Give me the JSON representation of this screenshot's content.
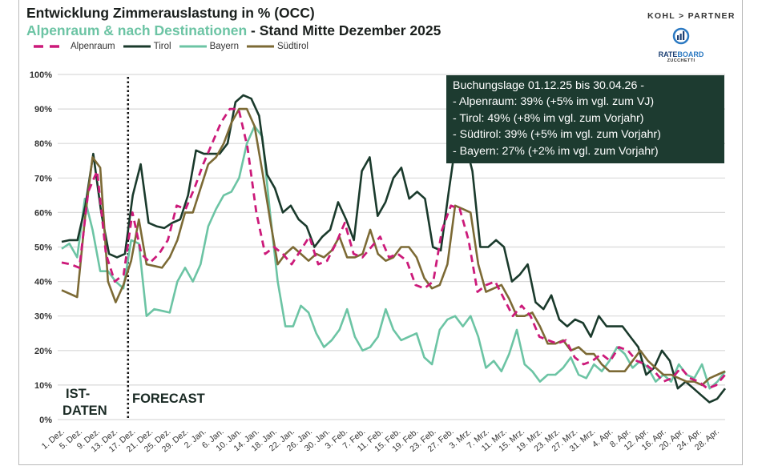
{
  "header": {
    "title": "Entwicklung Zimmerauslastung in % (OCC)",
    "subtitle_green": "Alpenraum & nach Destinationen",
    "subtitle_dark": " - Stand Mitte Dezember 2025"
  },
  "branding": {
    "partner": "KOHL > PARTNER",
    "rateboard_rate": "RATE",
    "rateboard_board": "BOARD",
    "rateboard_sub": "ZUCCHETTI"
  },
  "infobox": {
    "lines": [
      "Buchungslage 01.12.25 bis 30.04.26 -",
      "- Alpenraum:  39% (+5% im vgl. zum VJ)",
      "- Tirol: 49% (+8% im vgl. zum Vorjahr)",
      "- Südtirol: 39% (+5% im vgl. zum Vorjahr)",
      "- Bayern: 27% (+2% im vgl. zum Vorjahr)"
    ]
  },
  "annotations": {
    "ist_line1": "IST-",
    "ist_line2": "DATEN",
    "forecast": "FORECAST"
  },
  "colors": {
    "alpenraum": "#cc1a7a",
    "tirol": "#1a3a2c",
    "bayern": "#6cc4a4",
    "suedtirol": "#7c6a35",
    "grid": "#d9d9d9",
    "infobox_bg": "#1d3b30"
  },
  "chart_data": {
    "type": "line",
    "title": "Entwicklung Zimmerauslastung in % (OCC)",
    "subtitle": "Alpenraum & nach Destinationen - Stand Mitte Dezember 2025",
    "xlabel": "",
    "ylabel": "",
    "ylim": [
      0,
      100
    ],
    "y_ticks": [
      "0%",
      "10%",
      "20%",
      "30%",
      "40%",
      "50%",
      "60%",
      "70%",
      "80%",
      "90%",
      "100%"
    ],
    "grid": true,
    "legend_position": "top-left",
    "x_step_days": 2,
    "x_start": "1. Dez.",
    "x_tick_labels": [
      "1. Dez.",
      "5. Dez.",
      "9. Dez.",
      "13. Dez.",
      "17. Dez.",
      "21. Dez.",
      "25. Dez.",
      "29. Dez.",
      "2. Jan.",
      "6. Jan.",
      "10. Jan.",
      "14. Jan.",
      "18. Jan.",
      "22. Jan.",
      "26. Jan.",
      "30. Jan.",
      "3. Feb.",
      "7. Feb.",
      "11. Feb.",
      "15. Feb.",
      "19. Feb.",
      "23. Feb.",
      "27. Feb.",
      "3. Mrz.",
      "7. Mrz.",
      "11. Mrz.",
      "15. Mrz.",
      "19. Mrz.",
      "23. Mrz.",
      "27. Mrz.",
      "31. Mrz.",
      "4. Apr.",
      "8. Apr.",
      "12. Apr.",
      "16. Apr.",
      "20. Apr.",
      "24. Apr.",
      "28. Apr."
    ],
    "split_marker": {
      "after_tick": "13. Dez.",
      "day_index": 15,
      "left_label": "IST-DATEN",
      "right_label": "FORECAST"
    },
    "series": [
      {
        "name": "Alpenraum",
        "style": "dashed",
        "values": [
          45.5,
          45,
          44,
          66,
          72,
          48,
          40,
          42,
          60,
          48,
          45.5,
          48,
          52,
          62,
          61,
          67,
          74,
          80,
          86,
          90,
          90,
          79,
          60,
          48,
          50,
          48,
          45,
          49,
          53,
          45,
          46,
          51,
          57,
          48,
          47,
          50,
          53,
          47,
          48,
          46,
          39,
          38,
          40,
          55,
          62,
          61,
          52,
          37,
          39,
          40,
          35,
          30,
          33,
          30,
          24,
          23,
          22,
          23,
          18,
          16,
          17,
          19,
          17,
          21,
          20,
          17,
          16,
          14,
          11,
          12,
          15,
          12,
          11,
          9,
          10,
          13
        ]
      },
      {
        "name": "Tirol",
        "style": "solid",
        "values": [
          51.5,
          52,
          52,
          62,
          77,
          60,
          48,
          47,
          48,
          65,
          74,
          57,
          56,
          55.5,
          57,
          58,
          65,
          78,
          77,
          77,
          77,
          80,
          92,
          94,
          93,
          88,
          71,
          67,
          60,
          62,
          58,
          56,
          50,
          53,
          55,
          63,
          58,
          52,
          72,
          76,
          59,
          63,
          70,
          73,
          64,
          66,
          64,
          50,
          49,
          66,
          82,
          81,
          72,
          50,
          50,
          52,
          50,
          40,
          42,
          45,
          34,
          32,
          36,
          29,
          27,
          29,
          28,
          24,
          30,
          27,
          27,
          27,
          24,
          21,
          13,
          15,
          20,
          17,
          9,
          11,
          9,
          7,
          5,
          6,
          9
        ]
      },
      {
        "name": "Bayern",
        "style": "solid",
        "values": [
          49.5,
          51,
          47,
          64,
          55,
          43,
          43,
          40,
          38,
          52,
          51,
          30,
          32,
          31.5,
          31,
          40,
          44,
          40,
          45,
          56,
          61,
          65,
          66,
          70,
          80,
          85,
          82,
          60,
          40,
          27,
          27,
          33,
          31,
          25,
          21,
          23,
          26,
          32,
          24,
          20,
          21,
          24,
          32,
          26,
          23,
          24,
          25,
          18,
          16,
          26,
          29,
          30,
          27,
          30,
          24,
          15,
          17,
          14,
          19,
          26,
          16,
          14,
          11,
          13,
          13,
          15,
          18,
          13,
          12,
          16,
          14,
          17,
          21,
          19,
          15,
          17,
          15,
          11,
          13,
          11,
          16,
          13,
          12,
          16,
          9,
          11,
          14
        ]
      },
      {
        "name": "Südtirol",
        "style": "solid",
        "values": [
          37.5,
          36.5,
          35.5,
          58,
          76,
          73,
          40,
          34,
          39,
          46,
          58,
          45,
          44.5,
          44,
          47,
          52,
          60,
          60,
          67,
          74,
          76,
          80,
          86,
          90,
          90,
          85,
          72,
          58,
          45,
          48,
          50,
          48,
          46,
          48,
          47,
          49,
          53,
          47,
          47,
          48,
          55,
          48,
          46,
          47,
          50,
          50,
          47,
          41,
          38,
          39,
          45,
          62,
          61,
          60,
          45,
          37,
          38,
          39,
          35,
          30,
          30,
          31,
          27,
          22,
          22,
          23,
          20,
          21,
          19,
          19,
          16,
          14,
          14,
          14,
          17,
          20,
          17,
          15,
          13,
          13,
          12,
          11,
          11,
          10,
          12,
          13,
          14
        ]
      }
    ]
  }
}
